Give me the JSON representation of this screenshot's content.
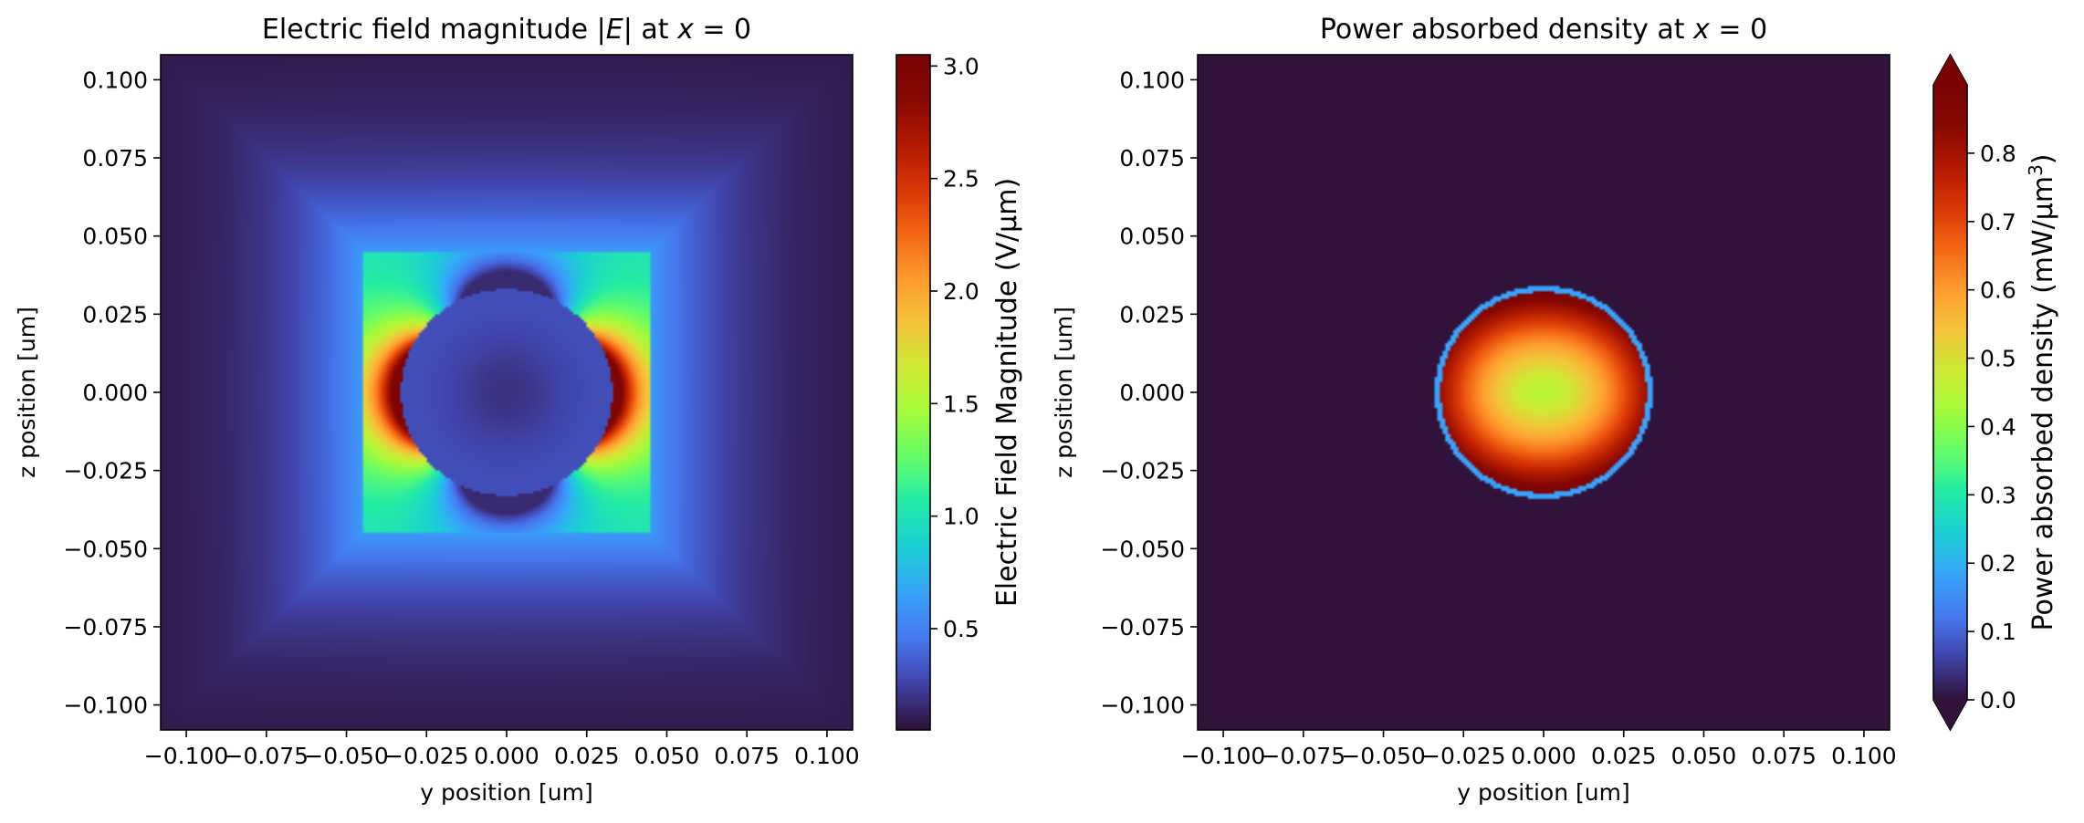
{
  "chart_data": [
    {
      "type": "heatmap",
      "title": "Electric field magnitude |E| at x = 0",
      "title_parts": {
        "pre": "Electric field magnitude |",
        "var": "E",
        "mid": "| at ",
        "xvar": "x",
        "post": " = 0"
      },
      "xlabel": "y position [um]",
      "ylabel": "z position [um]",
      "xlim": [
        -0.108,
        0.108
      ],
      "ylim": [
        -0.108,
        0.108
      ],
      "xticks": [
        "−0.100",
        "−0.075",
        "−0.050",
        "−0.025",
        "0.000",
        "0.025",
        "0.050",
        "0.075",
        "0.100"
      ],
      "xtick_values": [
        -0.1,
        -0.075,
        -0.05,
        -0.025,
        0.0,
        0.025,
        0.05,
        0.075,
        0.1
      ],
      "yticks": [
        "0.100",
        "0.075",
        "0.050",
        "0.025",
        "0.000",
        "−0.025",
        "−0.050",
        "−0.075",
        "−0.100"
      ],
      "ytick_values": [
        0.1,
        0.075,
        0.05,
        0.025,
        0.0,
        -0.025,
        -0.05,
        -0.075,
        -0.1
      ],
      "colormap": "turbo",
      "colorbar": {
        "label": "Electric Field Magnitude (V/μm)",
        "range": [
          0.05,
          3.05
        ],
        "ticks": [
          "0.5",
          "1.0",
          "1.5",
          "2.0",
          "2.5",
          "3.0"
        ],
        "tick_values": [
          0.5,
          1.0,
          1.5,
          2.0,
          2.5,
          3.0
        ],
        "extend": "neither"
      },
      "features": {
        "square_half_width": 0.045,
        "sphere_radius": 0.033,
        "inside_sphere_value": 0.3,
        "square_base_value": 1.0,
        "max_value": 3.0
      }
    },
    {
      "type": "heatmap",
      "title": "Power absorbed density at x = 0",
      "title_parts": {
        "pre": "Power absorbed density at ",
        "xvar": "x",
        "post": " = 0"
      },
      "xlabel": "y position [um]",
      "ylabel": "z position [um]",
      "xlim": [
        -0.108,
        0.108
      ],
      "ylim": [
        -0.108,
        0.108
      ],
      "xticks": [
        "−0.100",
        "−0.075",
        "−0.050",
        "−0.025",
        "0.000",
        "0.025",
        "0.050",
        "0.075",
        "0.100"
      ],
      "xtick_values": [
        -0.1,
        -0.075,
        -0.05,
        -0.025,
        0.0,
        0.025,
        0.05,
        0.075,
        0.1
      ],
      "yticks": [
        "0.100",
        "0.075",
        "0.050",
        "0.025",
        "0.000",
        "−0.025",
        "−0.050",
        "−0.075",
        "−0.100"
      ],
      "ytick_values": [
        0.1,
        0.075,
        0.05,
        0.025,
        0.0,
        -0.025,
        -0.05,
        -0.075,
        -0.1
      ],
      "colormap": "turbo",
      "colorbar": {
        "label": "Power absorbed density (mW/μm³)",
        "range": [
          0.0,
          0.9
        ],
        "ticks": [
          "0.0",
          "0.1",
          "0.2",
          "0.3",
          "0.4",
          "0.5",
          "0.6",
          "0.7",
          "0.8"
        ],
        "tick_values": [
          0.0,
          0.1,
          0.2,
          0.3,
          0.4,
          0.5,
          0.6,
          0.7,
          0.8
        ],
        "extend": "both"
      },
      "features": {
        "sphere_radius": 0.034,
        "center_value": 0.45,
        "edge_value": 0.9,
        "rim_value": 0.18,
        "background_value": 0.0
      }
    }
  ]
}
